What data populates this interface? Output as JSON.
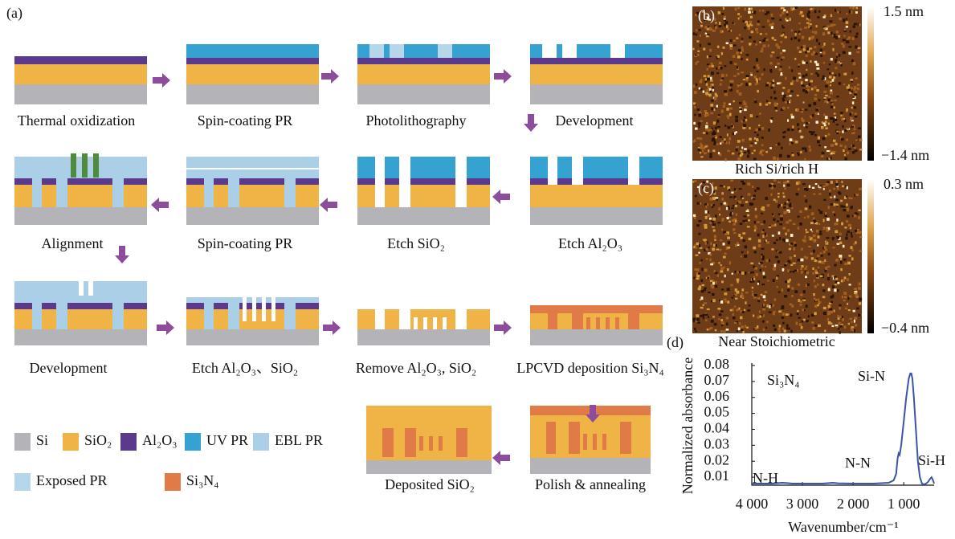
{
  "panel_a": {
    "label": "(a)",
    "steps": [
      "Thermal oxidization",
      "Spin-coating PR",
      "Photolithography",
      "Development",
      "Alignment",
      "Spin-coating PR",
      "Etch SiO₂",
      "Etch Al₂O₃",
      "Development",
      "Etch Al₂O₃、SiO₂",
      "Remove Al₂O₃, SiO₂",
      "LPCVD deposition Si₃N₄",
      "Polish & annealing",
      "Deposited SiO₂"
    ],
    "legend": [
      {
        "name": "Si",
        "color": "#b4b4b8"
      },
      {
        "name": "SiO₂",
        "color": "#efb445"
      },
      {
        "name": "Al₂O₃",
        "color": "#5b3a8e"
      },
      {
        "name": "UV PR",
        "color": "#36a2d2"
      },
      {
        "name": "EBL PR",
        "color": "#aacfe6"
      },
      {
        "name": "Exposed PR",
        "color": "#b6d6ea"
      },
      {
        "name": "Si₃N₄",
        "color": "#e07a46"
      }
    ]
  },
  "panel_b": {
    "label": "(b)",
    "caption": "Rich Si/rich H",
    "scale_max": "1.5 nm",
    "scale_min": "−1.4 nm"
  },
  "panel_c": {
    "label": "(c)",
    "caption": "Near Stoichiometric",
    "scale_max": "0.3 nm",
    "scale_min": "−0.4 nm"
  },
  "chart_data": {
    "type": "line",
    "label": "(d)",
    "x_label": "Wavenumber/cm⁻¹",
    "y_label": "Normalized absorbance",
    "annotations": [
      "Si₃N₄",
      "Si-N",
      "N-N",
      "N-H",
      "Si-H"
    ],
    "x": [
      4000,
      3600,
      3400,
      3300,
      3200,
      3000,
      2600,
      2400,
      2300,
      2000,
      1600,
      1300,
      1200,
      1150,
      1120,
      1100,
      1080,
      1050,
      1000,
      950,
      900,
      870,
      850,
      830,
      800,
      760,
      720,
      680,
      640,
      600,
      560,
      520,
      480,
      450,
      420,
      400
    ],
    "series": [
      {
        "color": "#3a55a8",
        "values": [
          0.006,
          0.006,
          0.0065,
          0.0063,
          0.006,
          0.006,
          0.006,
          0.0065,
          0.0062,
          0.006,
          0.006,
          0.0065,
          0.008,
          0.012,
          0.022,
          0.025,
          0.024,
          0.03,
          0.045,
          0.06,
          0.072,
          0.075,
          0.075,
          0.072,
          0.06,
          0.04,
          0.02,
          0.01,
          0.006,
          0.0055,
          0.006,
          0.007,
          0.009,
          0.01,
          0.008,
          0.006
        ]
      }
    ],
    "xlim": [
      4000,
      400
    ],
    "xticks": [
      {
        "value": 4000,
        "label": "4 000"
      },
      {
        "value": 3000,
        "label": "3 000"
      },
      {
        "value": 2000,
        "label": "2 000"
      },
      {
        "value": 1000,
        "label": "1 000"
      }
    ],
    "ylim": [
      0.005,
      0.08
    ],
    "yticks": [
      0.01,
      0.02,
      0.03,
      0.04,
      0.05,
      0.06,
      0.07,
      0.08
    ]
  }
}
